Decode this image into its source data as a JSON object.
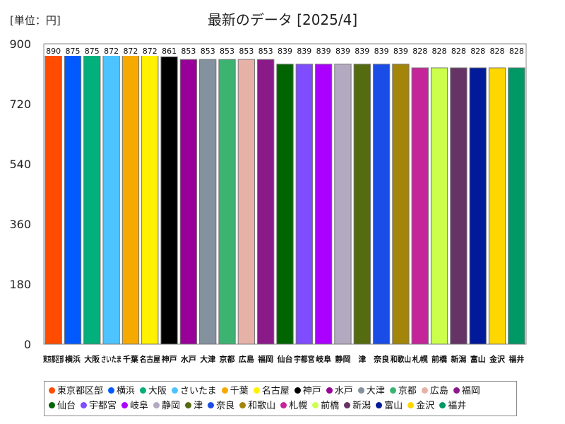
{
  "unit_label": "[単位：円]",
  "chart_data": {
    "type": "bar",
    "title": "最新のデータ [2025/4]",
    "xlabel": "",
    "ylabel": "",
    "ylim": [
      0,
      900
    ],
    "yticks": [
      0,
      180,
      360,
      540,
      720,
      900
    ],
    "grid": false,
    "legend_position": "bottom",
    "categories": [
      "東京都区部",
      "横浜",
      "大阪",
      "さいたま",
      "千葉",
      "名古屋",
      "神戸",
      "水戸",
      "大津",
      "京都",
      "広島",
      "福岡",
      "仙台",
      "宇都宮",
      "岐阜",
      "静岡",
      "津",
      "奈良",
      "和歌山",
      "札幌",
      "前橋",
      "新潟",
      "富山",
      "金沢",
      "福井"
    ],
    "values": [
      890,
      875,
      875,
      872,
      872,
      872,
      861,
      853,
      853,
      853,
      853,
      853,
      839,
      839,
      839,
      839,
      839,
      839,
      839,
      828,
      828,
      828,
      828,
      828,
      828
    ],
    "colors": [
      "#ff4c00",
      "#005aff",
      "#03af7a",
      "#4dc4ff",
      "#f6aa00",
      "#fff100",
      "#000000",
      "#990099",
      "#84919e",
      "#3cb371",
      "#e6b2a8",
      "#8b1a89",
      "#006400",
      "#804cff",
      "#aa00ff",
      "#b3a9c0",
      "#556b10",
      "#1a4ce6",
      "#a3850a",
      "#c62499",
      "#ccff4c",
      "#663366",
      "#001a99",
      "#ffd700",
      "#009966"
    ]
  }
}
